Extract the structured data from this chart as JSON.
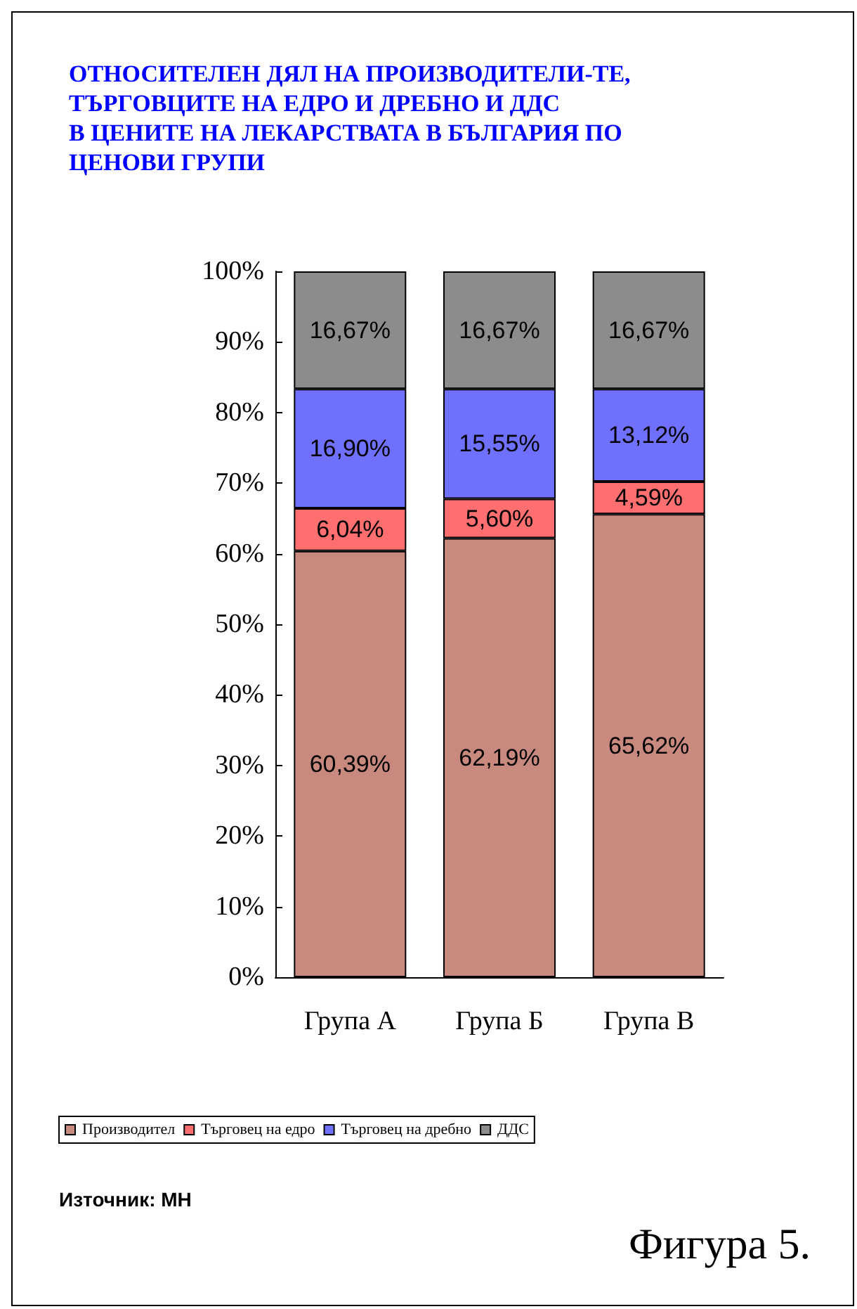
{
  "chart_data": {
    "type": "bar",
    "stacked": true,
    "title": "ОТНОСИТЕЛЕН ДЯЛ НА ПРОИЗВОДИТЕЛИ-ТЕ,\nТЪРГОВЦИТЕ НА ЕДРО И ДРЕБНО И ДДС\nВ ЦЕНИТЕ НА ЛЕКАРСТВАТА В БЪЛГАРИЯ ПО\nЦЕНОВИ ГРУПИ",
    "categories": [
      "Група А",
      "Група Б",
      "Група В"
    ],
    "series": [
      {
        "name": "Производител",
        "color": "#c8897f",
        "values": [
          60.39,
          62.19,
          65.62
        ],
        "value_labels": [
          "60,39%",
          "62,19%",
          "65,62%"
        ]
      },
      {
        "name": "Търговец на едро",
        "color": "#ff6f6f",
        "values": [
          6.04,
          5.6,
          4.59
        ],
        "value_labels": [
          "6,04%",
          "5,60%",
          "4,59%"
        ]
      },
      {
        "name": "Търговец на дребно",
        "color": "#7070ff",
        "values": [
          16.9,
          15.55,
          13.12
        ],
        "value_labels": [
          "16,90%",
          "15,55%",
          "13,12%"
        ]
      },
      {
        "name": "ДДС",
        "color": "#8c8c8c",
        "values": [
          16.67,
          16.67,
          16.67
        ],
        "value_labels": [
          "16,67%",
          "16,67%",
          "16,67%"
        ]
      }
    ],
    "ylim": [
      0,
      100
    ],
    "yticks": [
      {
        "value": 0,
        "label": "0%"
      },
      {
        "value": 10,
        "label": "10%"
      },
      {
        "value": 20,
        "label": "20%"
      },
      {
        "value": 30,
        "label": "30%"
      },
      {
        "value": 40,
        "label": "40%"
      },
      {
        "value": 50,
        "label": "50%"
      },
      {
        "value": 60,
        "label": "60%"
      },
      {
        "value": 70,
        "label": "70%"
      },
      {
        "value": 80,
        "label": "80%"
      },
      {
        "value": 90,
        "label": "90%"
      },
      {
        "value": 100,
        "label": "100%"
      }
    ],
    "grid": false,
    "legend": "bottom",
    "annotations": [
      "Източник: МН",
      "Фигура 5."
    ]
  }
}
